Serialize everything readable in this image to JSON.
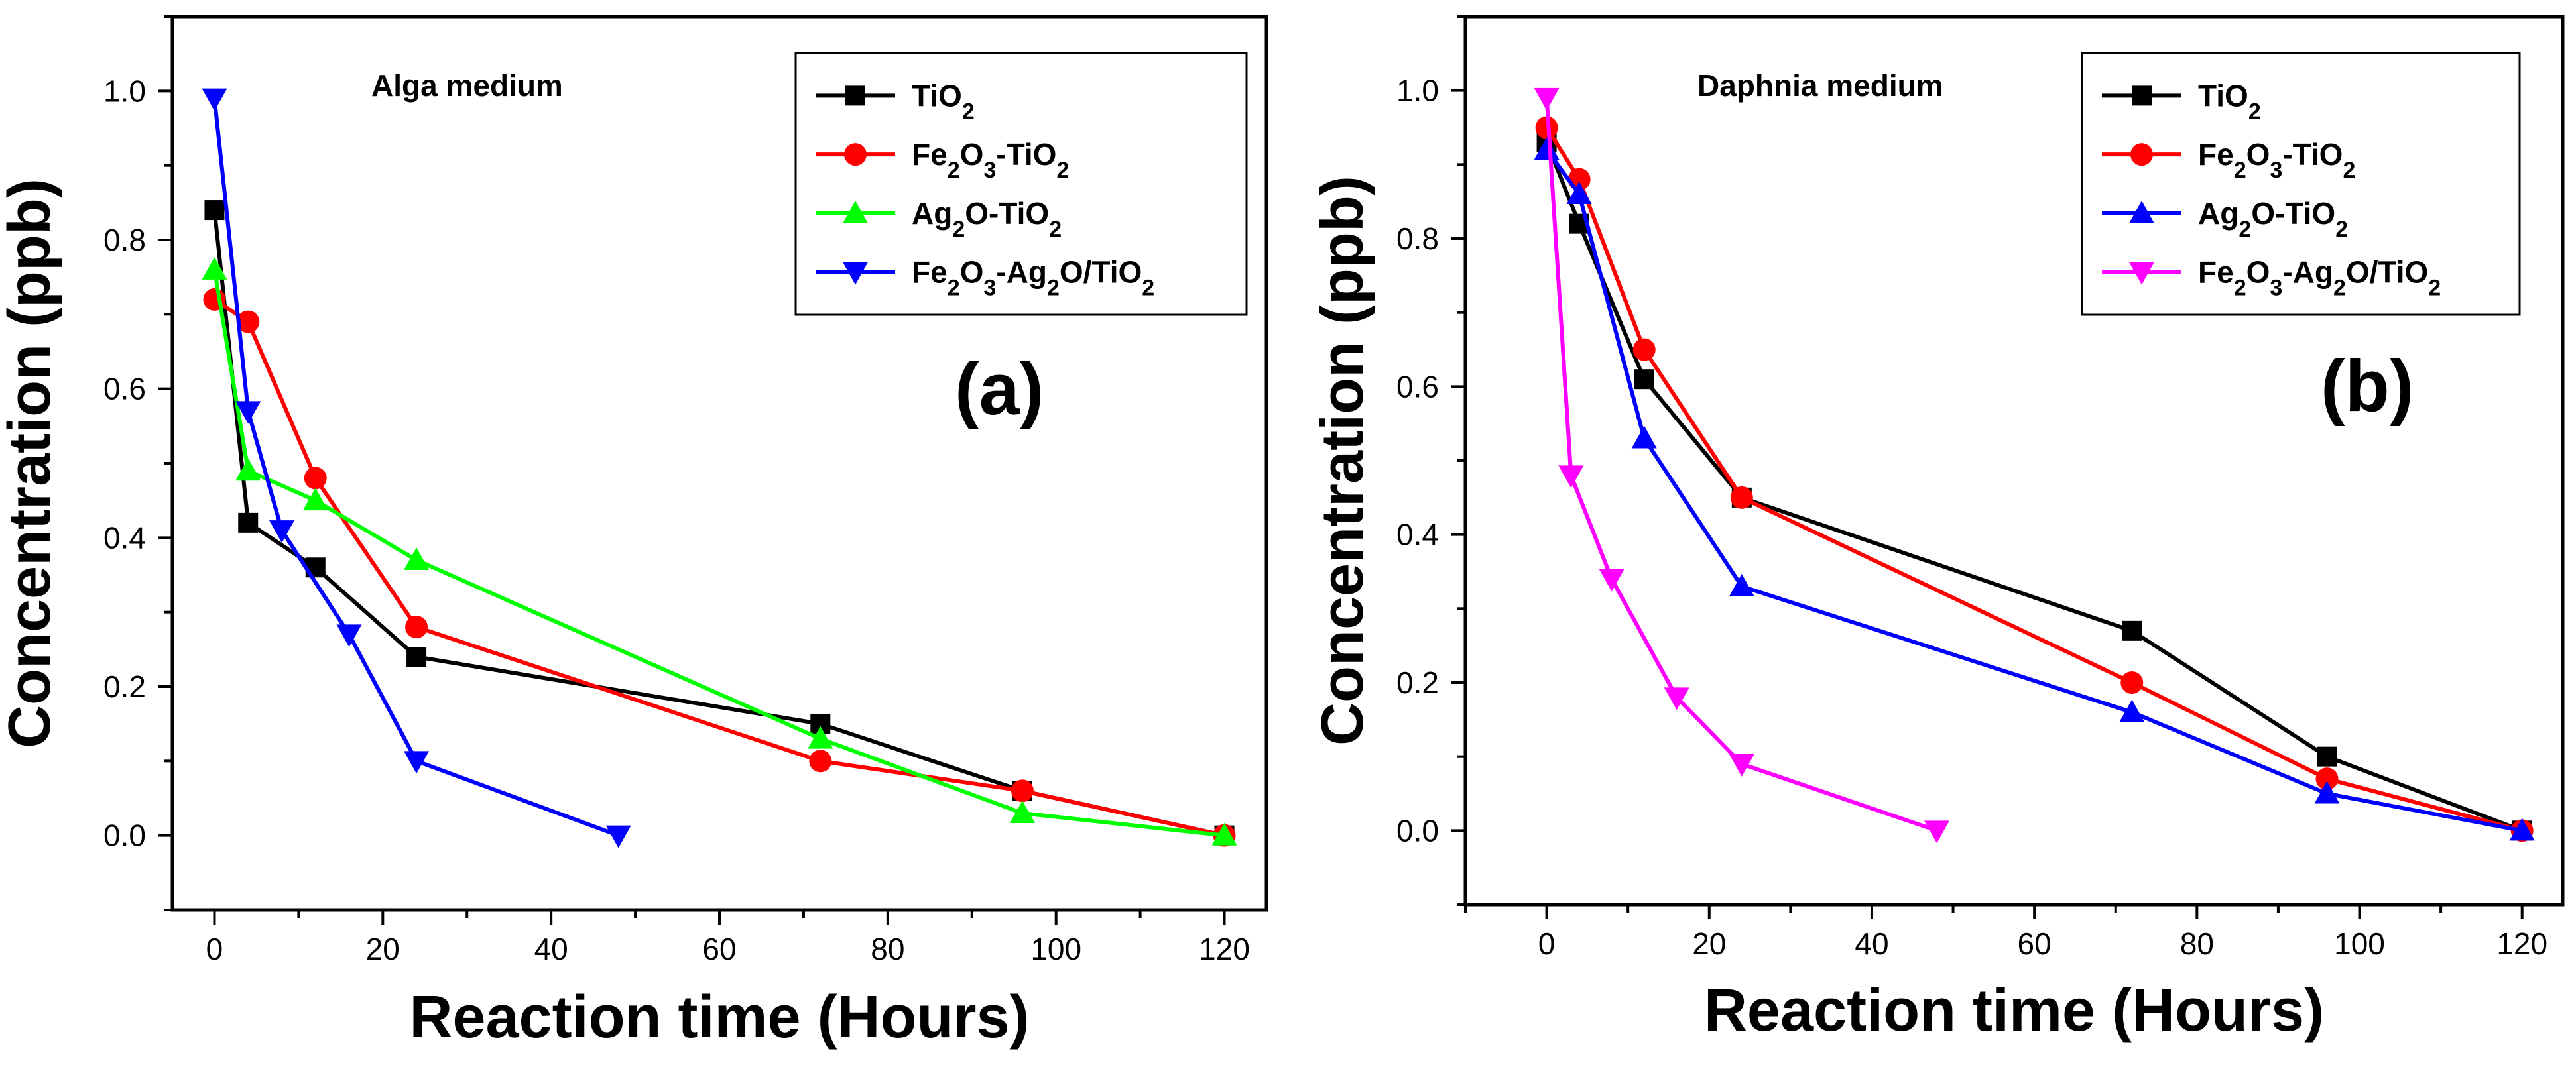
{
  "chart_data": [
    {
      "type": "line",
      "title": "Alga medium",
      "panel_tag": "(a)",
      "xlabel": "Reaction time (Hours)",
      "ylabel": "Concentration (ppb)",
      "xlim": [
        -5,
        125
      ],
      "ylim": [
        -0.1,
        1.1
      ],
      "xticks": [
        0,
        20,
        40,
        60,
        80,
        100,
        120
      ],
      "yticks": [
        0.0,
        0.2,
        0.4,
        0.6,
        0.8,
        1.0
      ],
      "legend_position": "top-right",
      "series": [
        {
          "name": "TiO2",
          "label_parts": [
            [
              "TiO",
              ""
            ],
            [
              "2",
              "sub"
            ]
          ],
          "color": "#000000",
          "marker": "square",
          "x": [
            0,
            4,
            12,
            24,
            72,
            96,
            120
          ],
          "y": [
            0.84,
            0.42,
            0.36,
            0.24,
            0.15,
            0.06,
            0.0
          ]
        },
        {
          "name": "Fe2O3-TiO2",
          "label_parts": [
            [
              "Fe",
              ""
            ],
            [
              "2",
              "sub"
            ],
            [
              "O",
              ""
            ],
            [
              "3",
              "sub"
            ],
            [
              "-TiO",
              ""
            ],
            [
              "2",
              "sub"
            ]
          ],
          "color": "#ff0000",
          "marker": "circle",
          "x": [
            0,
            4,
            12,
            24,
            72,
            96,
            120
          ],
          "y": [
            0.72,
            0.69,
            0.48,
            0.28,
            0.1,
            0.06,
            0.0
          ]
        },
        {
          "name": "Ag2O-TiO2",
          "label_parts": [
            [
              "Ag",
              ""
            ],
            [
              "2",
              "sub"
            ],
            [
              "O-TiO",
              ""
            ],
            [
              "2",
              "sub"
            ]
          ],
          "color": "#00ff00",
          "marker": "triangle-up",
          "x": [
            0,
            4,
            12,
            24,
            72,
            96,
            120
          ],
          "y": [
            0.76,
            0.49,
            0.45,
            0.37,
            0.13,
            0.03,
            0.0
          ]
        },
        {
          "name": "Fe2O3-Ag2O/TiO2",
          "label_parts": [
            [
              "Fe",
              ""
            ],
            [
              "2",
              "sub"
            ],
            [
              "O",
              ""
            ],
            [
              "3",
              "sub"
            ],
            [
              "-Ag",
              ""
            ],
            [
              "2",
              "sub"
            ],
            [
              "O/TiO",
              ""
            ],
            [
              "2",
              "sub"
            ]
          ],
          "color": "#0000ff",
          "marker": "triangle-down",
          "x": [
            0,
            4,
            8,
            16,
            24,
            48
          ],
          "y": [
            0.99,
            0.57,
            0.41,
            0.27,
            0.1,
            0.0
          ]
        }
      ]
    },
    {
      "type": "line",
      "title": "Daphnia medium",
      "panel_tag": "(b)",
      "xlabel": "Reaction time (Hours)",
      "ylabel": "Concentration (ppb)",
      "xlim": [
        -10,
        125
      ],
      "ylim": [
        -0.1,
        1.1
      ],
      "xticks": [
        0,
        20,
        40,
        60,
        80,
        100,
        120
      ],
      "yticks": [
        0.0,
        0.2,
        0.4,
        0.6,
        0.8,
        1.0
      ],
      "legend_position": "top-right",
      "series": [
        {
          "name": "TiO2",
          "label_parts": [
            [
              "TiO",
              ""
            ],
            [
              "2",
              "sub"
            ]
          ],
          "color": "#000000",
          "marker": "square",
          "x": [
            0,
            4,
            12,
            24,
            72,
            96,
            120
          ],
          "y": [
            0.93,
            0.82,
            0.61,
            0.45,
            0.27,
            0.1,
            0.0
          ]
        },
        {
          "name": "Fe2O3-TiO2",
          "label_parts": [
            [
              "Fe",
              ""
            ],
            [
              "2",
              "sub"
            ],
            [
              "O",
              ""
            ],
            [
              "3",
              "sub"
            ],
            [
              "-TiO",
              ""
            ],
            [
              "2",
              "sub"
            ]
          ],
          "color": "#ff0000",
          "marker": "circle",
          "x": [
            0,
            4,
            12,
            24,
            72,
            96,
            120
          ],
          "y": [
            0.95,
            0.88,
            0.65,
            0.45,
            0.2,
            0.07,
            0.0
          ]
        },
        {
          "name": "Ag2O-TiO2",
          "label_parts": [
            [
              "Ag",
              ""
            ],
            [
              "2",
              "sub"
            ],
            [
              "O-TiO",
              ""
            ],
            [
              "2",
              "sub"
            ]
          ],
          "color": "#0000ff",
          "marker": "triangle-up",
          "x": [
            0,
            4,
            12,
            24,
            72,
            96,
            120
          ],
          "y": [
            0.92,
            0.86,
            0.53,
            0.33,
            0.16,
            0.05,
            0.0
          ]
        },
        {
          "name": "Fe2O3-Ag2O/TiO2",
          "label_parts": [
            [
              "Fe",
              ""
            ],
            [
              "2",
              "sub"
            ],
            [
              "O",
              ""
            ],
            [
              "3",
              "sub"
            ],
            [
              "-Ag",
              ""
            ],
            [
              "2",
              "sub"
            ],
            [
              "O/TiO",
              ""
            ],
            [
              "2",
              "sub"
            ]
          ],
          "color": "#ff00ff",
          "marker": "triangle-down",
          "x": [
            0,
            3,
            8,
            16,
            24,
            48
          ],
          "y": [
            0.99,
            0.48,
            0.34,
            0.18,
            0.09,
            0.0
          ]
        }
      ]
    }
  ]
}
